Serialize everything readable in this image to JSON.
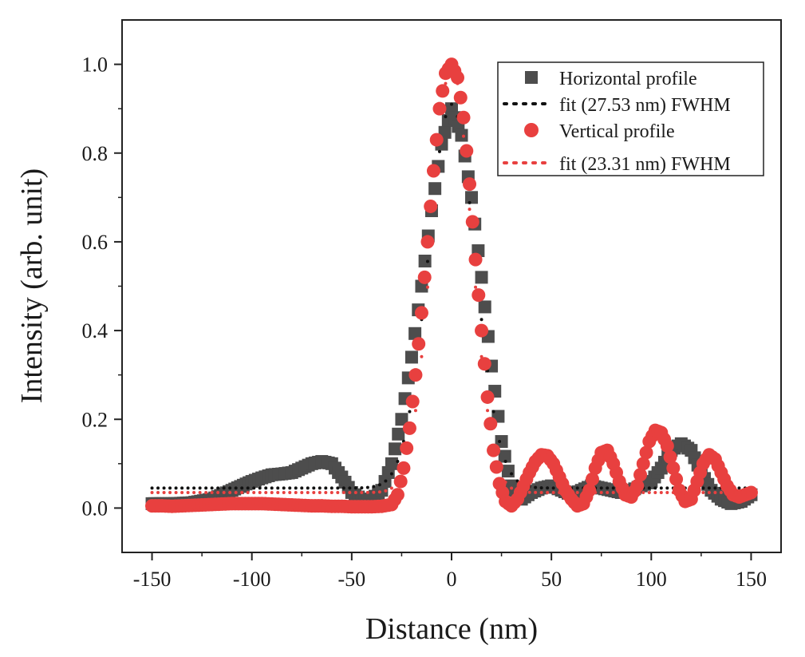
{
  "chart_data": {
    "type": "scatter",
    "xlabel": "Distance (nm)",
    "ylabel": "Intensity (arb. unit)",
    "xlim": [
      -165,
      165
    ],
    "ylim": [
      -0.1,
      1.1
    ],
    "xticks": [
      -150,
      -100,
      -50,
      0,
      50,
      100,
      150
    ],
    "xtick_labels": [
      "-150",
      "-100",
      "-50",
      "0",
      "50",
      "100",
      "150"
    ],
    "yticks": [
      0.0,
      0.2,
      0.4,
      0.6,
      0.8,
      1.0
    ],
    "ytick_labels": [
      "0.0",
      "0.2",
      "0.4",
      "0.6",
      "0.8",
      "1.0"
    ],
    "legend_position": "top-right",
    "series": [
      {
        "name": "Horizontal profile",
        "kind": "scatter",
        "marker": "square",
        "color": "#4d4d4d",
        "x": [
          -150,
          -140,
          -130,
          -120,
          -110,
          -100,
          -95,
          -90,
          -85,
          -80,
          -75,
          -70,
          -65,
          -60,
          -55,
          -50,
          -45,
          -40,
          -35,
          -30,
          -25,
          -20,
          -15,
          -10,
          -5,
          0,
          5,
          10,
          15,
          20,
          25,
          30,
          35,
          40,
          45,
          50,
          55,
          60,
          65,
          70,
          75,
          80,
          85,
          90,
          95,
          100,
          105,
          110,
          115,
          120,
          125,
          130,
          135,
          140,
          145,
          150
        ],
        "y": [
          0.01,
          0.01,
          0.012,
          0.02,
          0.04,
          0.06,
          0.068,
          0.075,
          0.077,
          0.08,
          0.09,
          0.1,
          0.105,
          0.1,
          0.07,
          0.035,
          0.02,
          0.02,
          0.04,
          0.1,
          0.2,
          0.34,
          0.5,
          0.67,
          0.82,
          0.9,
          0.84,
          0.7,
          0.52,
          0.32,
          0.15,
          0.05,
          0.02,
          0.035,
          0.045,
          0.05,
          0.04,
          0.03,
          0.04,
          0.05,
          0.045,
          0.04,
          0.035,
          0.04,
          0.05,
          0.06,
          0.09,
          0.13,
          0.145,
          0.13,
          0.08,
          0.04,
          0.02,
          0.01,
          0.015,
          0.03
        ]
      },
      {
        "name": "fit (27.53 nm) FWHM",
        "kind": "line",
        "style": "dotted",
        "color": "#111111",
        "fwhm": 27.53,
        "amplitude": 0.865,
        "baseline": 0.045,
        "center": 0,
        "x_range": [
          -150,
          150
        ]
      },
      {
        "name": "Vertical profile",
        "kind": "scatter",
        "marker": "circle",
        "color": "#e8403f",
        "x": [
          -150,
          -145,
          -140,
          -135,
          -130,
          -125,
          -120,
          -115,
          -110,
          -105,
          -100,
          -95,
          -90,
          -85,
          -80,
          -75,
          -70,
          -65,
          -60,
          -55,
          -50,
          -45,
          -40,
          -35,
          -30,
          -27,
          -24,
          -21,
          -18,
          -15,
          -12,
          -9,
          -6,
          -3,
          0,
          3,
          6,
          9,
          12,
          15,
          18,
          21,
          24,
          27,
          30,
          33,
          36,
          39,
          42,
          45,
          48,
          51,
          54,
          57,
          60,
          63,
          66,
          69,
          72,
          75,
          78,
          81,
          84,
          87,
          90,
          93,
          96,
          99,
          102,
          105,
          108,
          111,
          114,
          117,
          120,
          123,
          126,
          129,
          132,
          135,
          138,
          141,
          144,
          147,
          150
        ],
        "y": [
          0.005,
          0.005,
          0.004,
          0.005,
          0.006,
          0.007,
          0.008,
          0.009,
          0.01,
          0.01,
          0.01,
          0.01,
          0.009,
          0.008,
          0.007,
          0.006,
          0.005,
          0.005,
          0.004,
          0.004,
          0.003,
          0.003,
          0.003,
          0.004,
          0.008,
          0.03,
          0.09,
          0.18,
          0.3,
          0.44,
          0.6,
          0.76,
          0.9,
          0.98,
          1.0,
          0.97,
          0.88,
          0.73,
          0.56,
          0.4,
          0.25,
          0.13,
          0.055,
          0.015,
          0.005,
          0.02,
          0.05,
          0.08,
          0.105,
          0.12,
          0.118,
          0.1,
          0.07,
          0.04,
          0.02,
          0.005,
          0.01,
          0.04,
          0.09,
          0.125,
          0.13,
          0.1,
          0.06,
          0.03,
          0.025,
          0.05,
          0.1,
          0.15,
          0.175,
          0.17,
          0.14,
          0.09,
          0.04,
          0.015,
          0.02,
          0.06,
          0.1,
          0.12,
          0.11,
          0.08,
          0.05,
          0.03,
          0.025,
          0.03,
          0.035
        ]
      },
      {
        "name": "fit (23.31 nm) FWHM",
        "kind": "line",
        "style": "dotted",
        "color": "#e8403f",
        "fwhm": 23.31,
        "amplitude": 0.965,
        "baseline": 0.035,
        "center": 0,
        "x_range": [
          -150,
          150
        ]
      }
    ]
  }
}
